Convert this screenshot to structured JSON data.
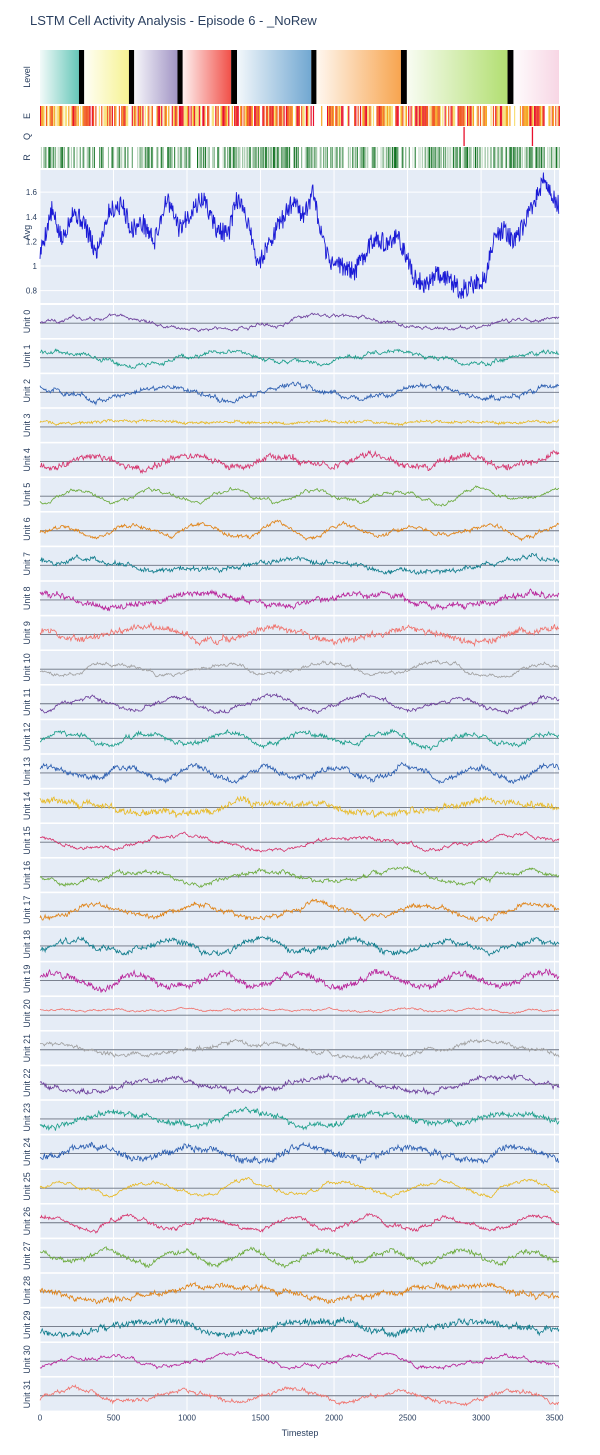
{
  "chart_data": {
    "type": "line",
    "title": "LSTM Cell Activity Analysis - Episode 6 - _NoRew",
    "xlabel": "Timestep",
    "xlim": [
      0,
      3530
    ],
    "x_ticks": [
      "0",
      "500",
      "1000",
      "1500",
      "2000",
      "2500",
      "3000",
      "3500"
    ],
    "x_tick_values": [
      0,
      500,
      1000,
      1500,
      2000,
      2500,
      3000,
      3500
    ],
    "top_panels": [
      "Level",
      "E",
      "Q",
      "R"
    ],
    "level_segments": [
      {
        "start": 0,
        "end": 265,
        "color": "#5ec4b5"
      },
      {
        "start": 300,
        "end": 605,
        "color": "#f6f28c"
      },
      {
        "start": 640,
        "end": 935,
        "color": "#9c8fc2"
      },
      {
        "start": 970,
        "end": 1300,
        "color": "#f0473f"
      },
      {
        "start": 1340,
        "end": 1845,
        "color": "#6aa3cf"
      },
      {
        "start": 1880,
        "end": 2455,
        "color": "#f7a046"
      },
      {
        "start": 2495,
        "end": 3180,
        "color": "#aedd6a"
      },
      {
        "start": 3220,
        "end": 3530,
        "color": "#f7d4e3"
      }
    ],
    "level_separator_color": "#000000",
    "e_colors": [
      "#f7e07a",
      "#f5a623",
      "#f15a24",
      "#e8112d"
    ],
    "q_spikes": [
      2880,
      3345
    ],
    "q_color": "#e8112d",
    "r_color": "#0b6e1c",
    "avg": {
      "label": "Avg",
      "y_ticks": [
        "0.8",
        "1",
        "1.2",
        "1.4",
        "1.6"
      ],
      "y_tick_values": [
        0.8,
        1.0,
        1.2,
        1.4,
        1.6
      ],
      "ylim": [
        0.7,
        1.78
      ],
      "color": "#1b1bd6",
      "keypoints": [
        [
          0,
          1.1
        ],
        [
          80,
          1.45
        ],
        [
          150,
          1.2
        ],
        [
          220,
          1.45
        ],
        [
          300,
          1.35
        ],
        [
          380,
          1.1
        ],
        [
          470,
          1.45
        ],
        [
          560,
          1.5
        ],
        [
          620,
          1.3
        ],
        [
          700,
          1.35
        ],
        [
          780,
          1.2
        ],
        [
          860,
          1.55
        ],
        [
          950,
          1.3
        ],
        [
          1030,
          1.45
        ],
        [
          1110,
          1.55
        ],
        [
          1200,
          1.3
        ],
        [
          1280,
          1.25
        ],
        [
          1340,
          1.55
        ],
        [
          1420,
          1.35
        ],
        [
          1480,
          1.0
        ],
        [
          1560,
          1.2
        ],
        [
          1660,
          1.4
        ],
        [
          1730,
          1.55
        ],
        [
          1790,
          1.4
        ],
        [
          1860,
          1.6
        ],
        [
          1900,
          1.3
        ],
        [
          1960,
          1.05
        ],
        [
          2060,
          1.0
        ],
        [
          2140,
          0.95
        ],
        [
          2230,
          1.15
        ],
        [
          2290,
          1.25
        ],
        [
          2360,
          1.15
        ],
        [
          2420,
          1.25
        ],
        [
          2490,
          1.1
        ],
        [
          2540,
          0.9
        ],
        [
          2620,
          0.85
        ],
        [
          2700,
          0.95
        ],
        [
          2780,
          0.9
        ],
        [
          2860,
          0.8
        ],
        [
          2950,
          0.85
        ],
        [
          3030,
          0.9
        ],
        [
          3080,
          1.2
        ],
        [
          3150,
          1.3
        ],
        [
          3230,
          1.2
        ],
        [
          3300,
          1.35
        ],
        [
          3360,
          1.5
        ],
        [
          3420,
          1.7
        ],
        [
          3480,
          1.55
        ],
        [
          3530,
          1.5
        ]
      ]
    },
    "units": [
      {
        "name": "Unit 0",
        "color": "#6b3d9a"
      },
      {
        "name": "Unit 1",
        "color": "#1b9e8a"
      },
      {
        "name": "Unit 2",
        "color": "#2a5db0"
      },
      {
        "name": "Unit 3",
        "color": "#e8b923"
      },
      {
        "name": "Unit 4",
        "color": "#d6336c"
      },
      {
        "name": "Unit 5",
        "color": "#6aaa3a"
      },
      {
        "name": "Unit 6",
        "color": "#e08214"
      },
      {
        "name": "Unit 7",
        "color": "#0f7c8c"
      },
      {
        "name": "Unit 8",
        "color": "#b8239a"
      },
      {
        "name": "Unit 9",
        "color": "#f0716b"
      },
      {
        "name": "Unit 10",
        "color": "#a0a0a0"
      },
      {
        "name": "Unit 11",
        "color": "#6b3d9a"
      },
      {
        "name": "Unit 12",
        "color": "#1b9e8a"
      },
      {
        "name": "Unit 13",
        "color": "#2a5db0"
      },
      {
        "name": "Unit 14",
        "color": "#e8b923"
      },
      {
        "name": "Unit 15",
        "color": "#d6336c"
      },
      {
        "name": "Unit 16",
        "color": "#6aaa3a"
      },
      {
        "name": "Unit 17",
        "color": "#e08214"
      },
      {
        "name": "Unit 18",
        "color": "#0f7c8c"
      },
      {
        "name": "Unit 19",
        "color": "#b8239a"
      },
      {
        "name": "Unit 20",
        "color": "#f0716b"
      },
      {
        "name": "Unit 21",
        "color": "#a0a0a0"
      },
      {
        "name": "Unit 22",
        "color": "#6b3d9a"
      },
      {
        "name": "Unit 23",
        "color": "#1b9e8a"
      },
      {
        "name": "Unit 24",
        "color": "#2a5db0"
      },
      {
        "name": "Unit 25",
        "color": "#e8b923"
      },
      {
        "name": "Unit 26",
        "color": "#d6336c"
      },
      {
        "name": "Unit 27",
        "color": "#6aaa3a"
      },
      {
        "name": "Unit 28",
        "color": "#e08214"
      },
      {
        "name": "Unit 29",
        "color": "#0f7c8c"
      },
      {
        "name": "Unit 30",
        "color": "#b8239a"
      },
      {
        "name": "Unit 31",
        "color": "#f0716b"
      }
    ]
  }
}
